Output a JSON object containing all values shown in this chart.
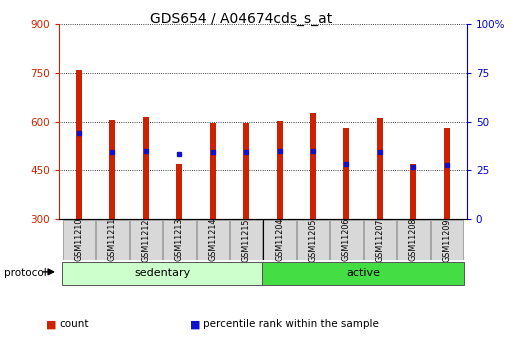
{
  "title": "GDS654 / A04674cds_s_at",
  "samples": [
    "GSM11210",
    "GSM11211",
    "GSM11212",
    "GSM11213",
    "GSM11214",
    "GSM11215",
    "GSM11204",
    "GSM11205",
    "GSM11206",
    "GSM11207",
    "GSM11208",
    "GSM11209"
  ],
  "count_values": [
    760,
    605,
    615,
    470,
    595,
    597,
    603,
    628,
    580,
    612,
    470,
    580
  ],
  "percentile_values": [
    565,
    505,
    510,
    500,
    505,
    505,
    510,
    510,
    468,
    508,
    460,
    465
  ],
  "ylim_left": [
    300,
    900
  ],
  "ylim_right": [
    0,
    100
  ],
  "yticks_left": [
    300,
    450,
    600,
    750,
    900
  ],
  "yticks_right": [
    0,
    25,
    50,
    75,
    100
  ],
  "bar_color": "#cc2200",
  "marker_color": "#1111cc",
  "sedentary_color": "#ccffcc",
  "active_color": "#44dd44",
  "title_fontsize": 10,
  "tick_label_color_left": "#cc2200",
  "tick_label_color_right": "#0000cc",
  "legend_items": [
    {
      "label": "count",
      "color": "#cc2200"
    },
    {
      "label": "percentile rank within the sample",
      "color": "#1111cc"
    }
  ],
  "protocol_label": "protocol",
  "group_label_sedentary": "sedentary",
  "group_label_active": "active",
  "bar_width": 0.18
}
